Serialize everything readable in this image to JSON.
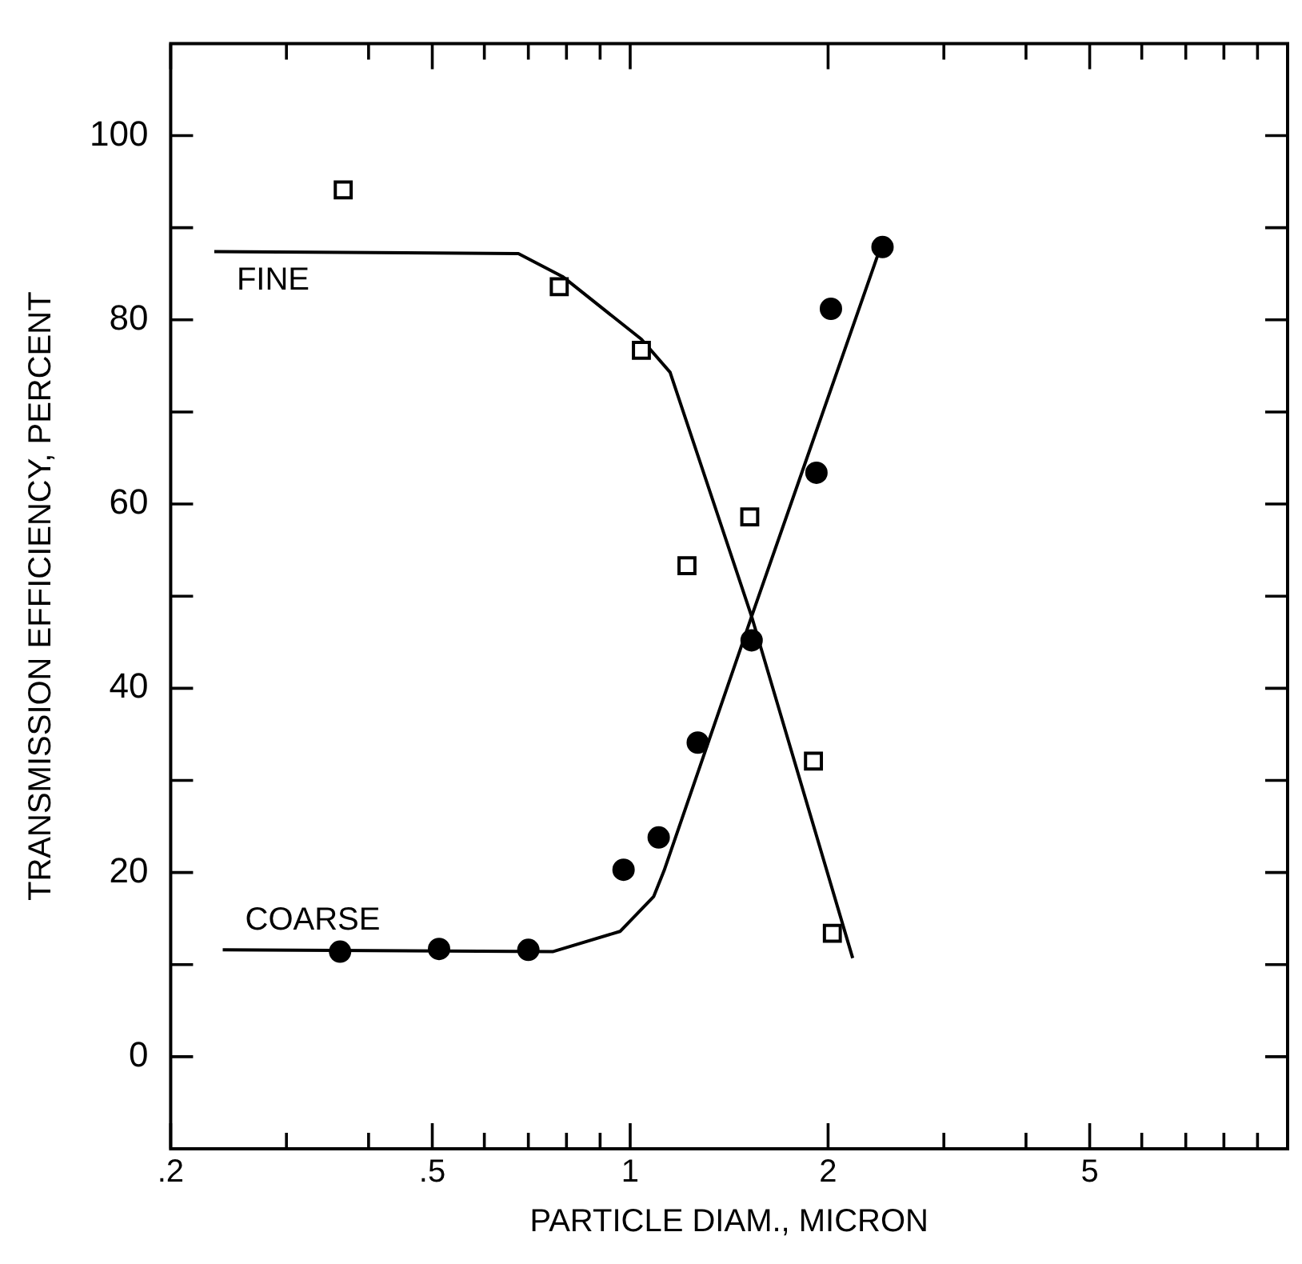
{
  "chart_data": {
    "type": "scatter",
    "xlabel": "PARTICLE DIAM., MICRON",
    "ylabel": "TRANSMISSION EFFICIENCY, PERCENT",
    "log": "x",
    "grid": false,
    "legend": false,
    "xlim": [
      0.2,
      10
    ],
    "xticks": [
      {
        "value": 0.2,
        "label": ".2"
      },
      {
        "value": 0.3,
        "label": null
      },
      {
        "value": 0.4,
        "label": null
      },
      {
        "value": 0.5,
        "label": ".5"
      },
      {
        "value": 0.6,
        "label": null
      },
      {
        "value": 0.7,
        "label": null
      },
      {
        "value": 0.8,
        "label": null
      },
      {
        "value": 0.9,
        "label": null
      },
      1,
      2,
      {
        "value": 3,
        "label": null
      },
      {
        "value": 4,
        "label": null
      },
      5,
      {
        "value": 6,
        "label": null
      },
      {
        "value": 7,
        "label": null
      },
      {
        "value": 8,
        "label": null
      },
      {
        "value": 9,
        "label": null
      }
    ],
    "ylim": [
      -10,
      110
    ],
    "yticks": [
      {
        "value": -10,
        "label": null
      },
      0,
      {
        "value": 10,
        "label": null
      },
      20,
      {
        "value": 30,
        "label": null
      },
      40,
      {
        "value": 50,
        "label": null
      },
      60,
      {
        "value": 70,
        "label": null
      },
      80,
      {
        "value": 90,
        "label": null
      },
      100
    ],
    "series": [
      {
        "name": "FINE",
        "type": "line",
        "marker": "none",
        "line_style": "solid",
        "color": "#000000",
        "x": [
          0.233,
          0.676,
          0.789,
          1.04,
          1.15,
          1.53,
          2.18
        ],
        "values": [
          87.4,
          87.2,
          84.7,
          77.9,
          74.3,
          47.8,
          10.7
        ]
      },
      {
        "name": "COARSE",
        "type": "line",
        "marker": "none",
        "line_style": "solid",
        "color": "#000000",
        "x": [
          0.24,
          0.762,
          0.965,
          1.086,
          1.126,
          1.53,
          2.39
        ],
        "values": [
          11.6,
          11.4,
          13.6,
          17.4,
          20.2,
          47.8,
          87.4
        ]
      },
      {
        "marker": "square",
        "color": "#000000",
        "x": [
          0.366,
          0.78,
          1.04,
          1.22,
          1.52,
          1.9,
          2.03
        ],
        "values": [
          94.1,
          83.6,
          76.7,
          53.3,
          58.6,
          32.1,
          13.4
        ]
      },
      {
        "marker": "circle",
        "color": "#000000",
        "x": [
          0.362,
          0.512,
          0.7,
          0.977,
          1.105,
          1.267,
          1.53,
          1.92,
          2.02,
          2.42
        ],
        "values": [
          11.4,
          11.7,
          11.6,
          20.3,
          23.8,
          34.1,
          45.2,
          63.4,
          81.2,
          87.9
        ]
      }
    ]
  }
}
